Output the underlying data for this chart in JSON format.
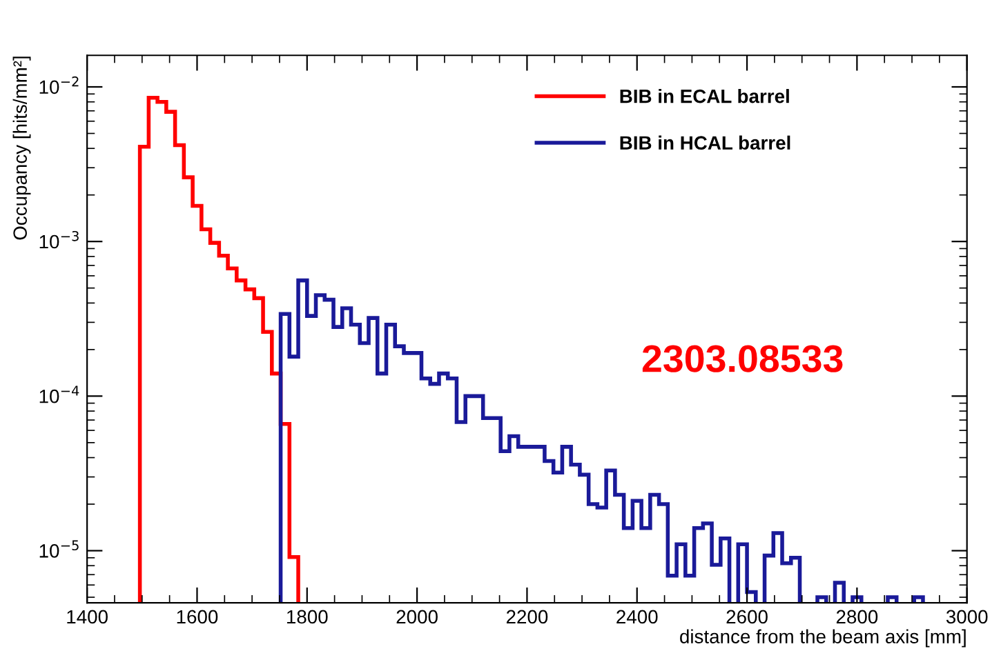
{
  "chart_data": {
    "type": "histogram",
    "xlabel": "distance from the beam axis [mm]",
    "ylabel": "Occupancy [hits/mm²]",
    "bins": [
      1496,
      1512,
      1528,
      1544,
      1560,
      1576,
      1592,
      1608,
      1624,
      1640,
      1656,
      1672,
      1688,
      1704,
      1720,
      1736,
      1752,
      1768,
      1784
    ],
    "series": [
      {
        "name": "BIB in ECAL barrel",
        "color": "#ff0000",
        "values": [
          0.0041,
          0.0085,
          0.008,
          0.0069,
          0.0042,
          0.0026,
          0.0017,
          0.0012,
          0.00098,
          0.00081,
          0.00067,
          0.00056,
          0.00049,
          0.00043,
          0.00026,
          0.00014,
          6.6e-05,
          9.1e-06
        ]
      },
      {
        "name": "BIB in HCAL barrel",
        "color": "#1a1a99",
        "bins": [
          1752,
          1768,
          1784,
          1800,
          1816,
          1832,
          1848,
          1864,
          1880,
          1896,
          1912,
          1928,
          1944,
          1960,
          1976,
          1992,
          2008,
          2024,
          2040,
          2056,
          2072,
          2088,
          2104,
          2120,
          2136,
          2152,
          2168,
          2184,
          2200,
          2216,
          2232,
          2248,
          2264,
          2280,
          2296,
          2312,
          2328,
          2344,
          2360,
          2376,
          2392,
          2408,
          2424,
          2440,
          2456,
          2472,
          2488,
          2504,
          2520,
          2536,
          2552,
          2568
        ],
        "values": [
          0.00034,
          0.00018,
          0.00056,
          0.00033,
          0.00045,
          0.00042,
          0.00028,
          0.00037,
          0.00029,
          0.00022,
          0.00032,
          0.00014,
          0.00029,
          0.00021,
          0.00019,
          0.00019,
          0.00013,
          0.00012,
          0.00014,
          0.00013,
          6.8e-05,
          0.0001,
          0.0001,
          7.2e-05,
          7.2e-05,
          4.4e-05,
          5.5e-05,
          4.7e-05,
          4.7e-05,
          4.7e-05,
          3.8e-05,
          3.2e-05,
          4.7e-05,
          3.6e-05,
          3.1e-05,
          2e-05,
          1.9e-05,
          3.3e-05,
          2.3e-05,
          1.4e-05,
          2.1e-05,
          1.4e-05,
          2.3e-05,
          2e-05,
          6.9e-06,
          1.1e-05,
          6.9e-06,
          1.4e-05,
          1.5e-05,
          8.1e-06,
          1.2e-05
        ]
      },
      {
        "color": "#1a1a99",
        "bins": [
          2584,
          2600,
          2616
        ],
        "values": [
          1.1e-05,
          5.4e-06
        ]
      },
      {
        "color": "#1a1a99",
        "bins": [
          2632,
          2648,
          2664,
          2680,
          2696
        ],
        "values": [
          9.3e-06,
          1.3e-05,
          8.3e-06,
          9e-06
        ]
      },
      {
        "color": "#1a1a99",
        "bins": [
          2728,
          2744
        ],
        "values": [
          5e-06
        ]
      },
      {
        "color": "#1a1a99",
        "bins": [
          2760,
          2776
        ],
        "values": [
          6.2e-06
        ]
      },
      {
        "color": "#1a1a99",
        "bins": [
          2792,
          2808
        ],
        "values": [
          5e-06
        ]
      },
      {
        "color": "#1a1a99",
        "bins": [
          2856,
          2872
        ],
        "values": [
          5e-06
        ]
      },
      {
        "color": "#1a1a99",
        "bins": [
          2904,
          2920
        ],
        "values": [
          5e-06
        ]
      }
    ],
    "xlim": [
      1400,
      3000
    ],
    "xticks": [
      1400,
      1600,
      1800,
      2000,
      2200,
      2400,
      2600,
      2800,
      3000
    ],
    "ylim": [
      4.6e-06,
      0.016
    ],
    "yticks": [
      {
        "value": 1e-05,
        "label": "10$^{−5}$"
      },
      {
        "value": 0.0001,
        "label": "10$^{−4}$"
      },
      {
        "value": 0.001,
        "label": "10$^{−3}$"
      },
      {
        "value": 0.01,
        "label": "10$^{−2}$"
      }
    ],
    "log": "y",
    "grid": false,
    "legend": "top right",
    "annotations": [
      "2303.08533"
    ]
  }
}
